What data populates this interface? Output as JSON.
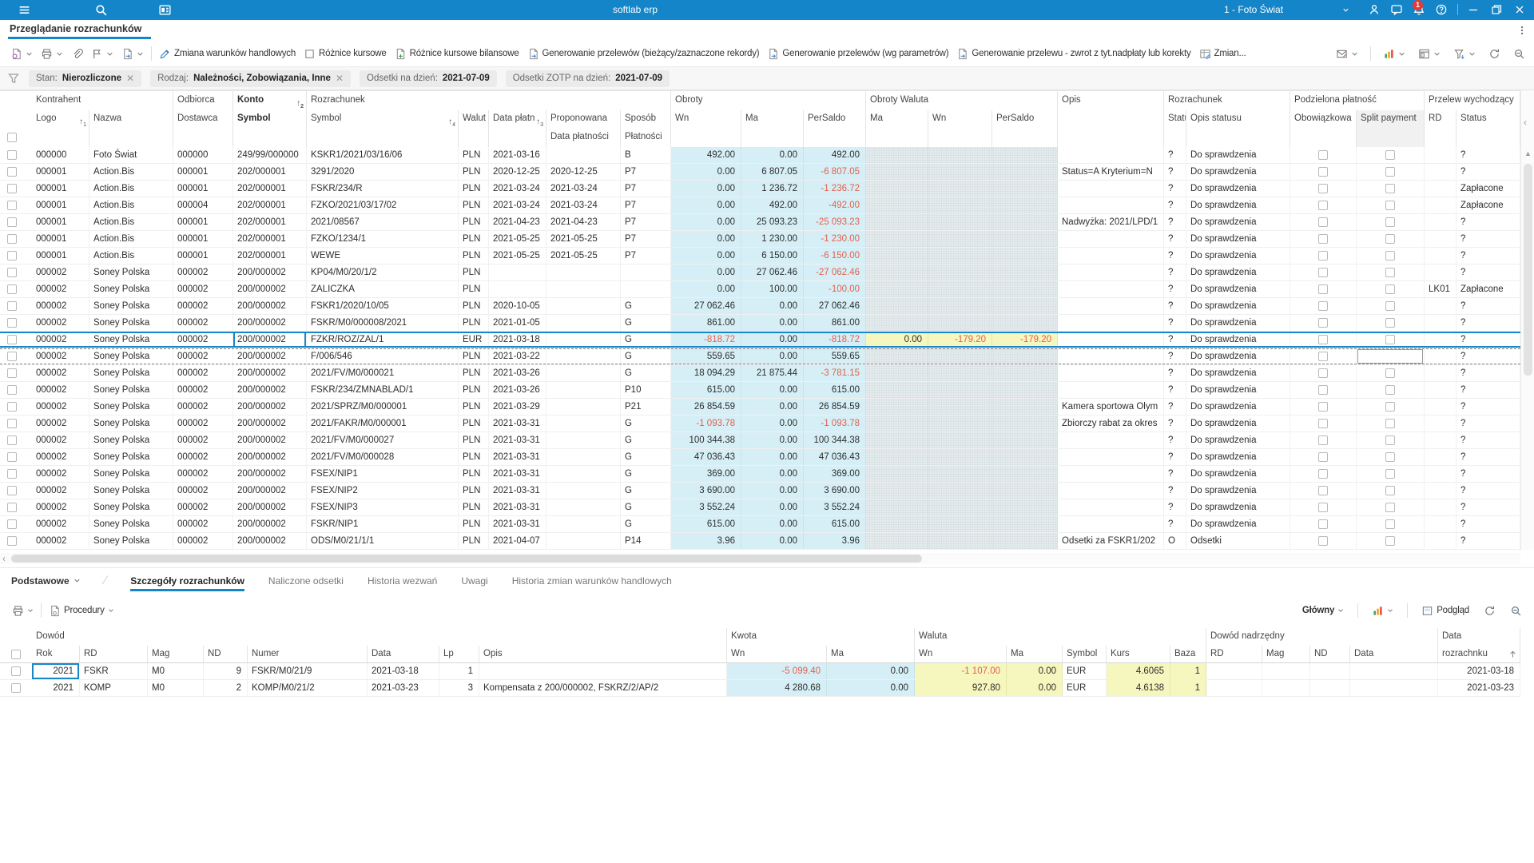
{
  "window": {
    "title": "softlab erp",
    "company": "1 - Foto Świat",
    "notifications": "1"
  },
  "nav": {
    "active_tab": "Przeglądanie rozrachunków"
  },
  "toolbar": {
    "buttons": [
      "Zmiana warunków handlowych",
      "Różnice kursowe",
      "Różnice kursowe bilansowe",
      "Generowanie przelewów (bieżący/zaznaczone rekordy)",
      "Generowanie przelewów (wg parametrów)",
      "Generowanie przelewu - zwrot z tyt.nadpłaty lub korekty",
      "Zmian..."
    ]
  },
  "filter_bar": {
    "chips": [
      {
        "label": "Stan:",
        "value": "Nierozliczone",
        "removable": true
      },
      {
        "label": "Rodzaj:",
        "value": "Należności, Zobowiązania, Inne",
        "removable": true
      },
      {
        "label": "Odsetki  na dzień:",
        "value": "2021-07-09",
        "removable": false
      },
      {
        "label": "Odsetki ZOTP  na dzień:",
        "value": "2021-07-09",
        "removable": false
      }
    ]
  },
  "main_grid": {
    "group_labels": [
      "Kontrahent",
      "Odbiorca",
      "Konto",
      "Rozrachunek",
      "Obroty",
      "Obroty Waluta",
      "Opis",
      "Rozrachunek",
      "Podzielona płatność",
      "Przelew wychodzący"
    ],
    "columns": [
      "Logo",
      "Nazwa",
      "Dostawca",
      "Symbol",
      "Symbol",
      "Walut",
      "Data płatn",
      "Proponowana",
      "Sposób",
      "Wn",
      "Ma",
      "PerSaldo",
      "Ma",
      "Wn",
      "PerSaldo",
      "",
      "Statu",
      "Opis statusu",
      "Obowiązkowa",
      "Split payment",
      "RD",
      "Status"
    ],
    "columns_line2": {
      "proponowana": "Data płatności",
      "sposob": "Płatności"
    },
    "sort_indicators": {
      "logo": "1",
      "konto": "2",
      "data_platnosci": "3",
      "symbol": "4"
    },
    "selected_row_index": 11,
    "dashed_row_index": 12,
    "rows": [
      [
        "000000",
        "Foto Świat",
        "000000",
        "249/99/000000",
        "KSKR1/2021/03/16/06",
        "PLN",
        "2021-03-16",
        "",
        "B",
        "492.00",
        "0.00",
        "492.00",
        "",
        "",
        "",
        "",
        "?",
        "Do sprawdzenia",
        "",
        "?"
      ],
      [
        "000001",
        "Action.Bis",
        "000001",
        "202/000001",
        "3291/2020",
        "PLN",
        "2020-12-25",
        "2020-12-25",
        "P7",
        "0.00",
        "6 807.05",
        "-6 807.05",
        "",
        "",
        "",
        "Status=A Kryterium=N",
        "?",
        "Do sprawdzenia",
        "",
        "?"
      ],
      [
        "000001",
        "Action.Bis",
        "000001",
        "202/000001",
        "FSKR/234/R",
        "PLN",
        "2021-03-24",
        "2021-03-24",
        "P7",
        "0.00",
        "1 236.72",
        "-1 236.72",
        "",
        "",
        "",
        "",
        "?",
        "Do sprawdzenia",
        "",
        "Zapłacone"
      ],
      [
        "000001",
        "Action.Bis",
        "000004",
        "202/000001",
        "FZKO/2021/03/17/02",
        "PLN",
        "2021-03-24",
        "2021-03-24",
        "P7",
        "0.00",
        "492.00",
        "-492.00",
        "",
        "",
        "",
        "",
        "?",
        "Do sprawdzenia",
        "",
        "Zapłacone"
      ],
      [
        "000001",
        "Action.Bis",
        "000001",
        "202/000001",
        "2021/08567",
        "PLN",
        "2021-04-23",
        "2021-04-23",
        "P7",
        "0.00",
        "25 093.23",
        "-25 093.23",
        "",
        "",
        "",
        "Nadwyżka: 2021/LPD/1",
        "?",
        "Do sprawdzenia",
        "",
        "?"
      ],
      [
        "000001",
        "Action.Bis",
        "000001",
        "202/000001",
        "FZKO/1234/1",
        "PLN",
        "2021-05-25",
        "2021-05-25",
        "P7",
        "0.00",
        "1 230.00",
        "-1 230.00",
        "",
        "",
        "",
        "",
        "?",
        "Do sprawdzenia",
        "",
        "?"
      ],
      [
        "000001",
        "Action.Bis",
        "000001",
        "202/000001",
        "WEWE",
        "PLN",
        "2021-05-25",
        "2021-05-25",
        "P7",
        "0.00",
        "6 150.00",
        "-6 150.00",
        "",
        "",
        "",
        "",
        "?",
        "Do sprawdzenia",
        "",
        "?"
      ],
      [
        "000002",
        "Soney Polska",
        "000002",
        "200/000002",
        "KP04/M0/20/1/2",
        "PLN",
        "",
        "",
        "",
        "0.00",
        "27 062.46",
        "-27 062.46",
        "",
        "",
        "",
        "",
        "?",
        "Do sprawdzenia",
        "",
        "?"
      ],
      [
        "000002",
        "Soney Polska",
        "000002",
        "200/000002",
        "ZALICZKA",
        "PLN",
        "",
        "",
        "",
        "0.00",
        "100.00",
        "-100.00",
        "",
        "",
        "",
        "",
        "?",
        "Do sprawdzenia",
        "LK01",
        "Zapłacone"
      ],
      [
        "000002",
        "Soney Polska",
        "000002",
        "200/000002",
        "FSKR1/2020/10/05",
        "PLN",
        "2020-10-05",
        "",
        "G",
        "27 062.46",
        "0.00",
        "27 062.46",
        "",
        "",
        "",
        "",
        "?",
        "Do sprawdzenia",
        "",
        "?"
      ],
      [
        "000002",
        "Soney Polska",
        "000002",
        "200/000002",
        "FSKR/M0/000008/2021",
        "PLN",
        "2021-01-05",
        "",
        "G",
        "861.00",
        "0.00",
        "861.00",
        "",
        "",
        "",
        "",
        "?",
        "Do sprawdzenia",
        "",
        "?"
      ],
      [
        "000002",
        "Soney Polska",
        "000002",
        "200/000002",
        "FZKR/ROZ/ZAL/1",
        "EUR",
        "2021-03-18",
        "",
        "G",
        "-818.72",
        "0.00",
        "-818.72",
        "0.00",
        "-179.20",
        "-179.20",
        "",
        "?",
        "Do sprawdzenia",
        "",
        "?"
      ],
      [
        "000002",
        "Soney Polska",
        "000002",
        "200/000002",
        "F/006/546",
        "PLN",
        "2021-03-22",
        "",
        "G",
        "559.65",
        "0.00",
        "559.65",
        "",
        "",
        "",
        "",
        "?",
        "Do sprawdzenia",
        "",
        "?"
      ],
      [
        "000002",
        "Soney Polska",
        "000002",
        "200/000002",
        "2021/FV/M0/000021",
        "PLN",
        "2021-03-26",
        "",
        "G",
        "18 094.29",
        "21 875.44",
        "-3 781.15",
        "",
        "",
        "",
        "",
        "?",
        "Do sprawdzenia",
        "",
        "?"
      ],
      [
        "000002",
        "Soney Polska",
        "000002",
        "200/000002",
        "FSKR/234/ZMNABLAD/1",
        "PLN",
        "2021-03-26",
        "",
        "P10",
        "615.00",
        "0.00",
        "615.00",
        "",
        "",
        "",
        "",
        "?",
        "Do sprawdzenia",
        "",
        "?"
      ],
      [
        "000002",
        "Soney Polska",
        "000002",
        "200/000002",
        "2021/SPRZ/M0/000001",
        "PLN",
        "2021-03-29",
        "",
        "P21",
        "26 854.59",
        "0.00",
        "26 854.59",
        "",
        "",
        "",
        "Kamera sportowa Olym",
        "?",
        "Do sprawdzenia",
        "",
        "?"
      ],
      [
        "000002",
        "Soney Polska",
        "000002",
        "200/000002",
        "2021/FAKR/M0/000001",
        "PLN",
        "2021-03-31",
        "",
        "G",
        "-1 093.78",
        "0.00",
        "-1 093.78",
        "",
        "",
        "",
        "Zbiorczy rabat za okres",
        "?",
        "Do sprawdzenia",
        "",
        "?"
      ],
      [
        "000002",
        "Soney Polska",
        "000002",
        "200/000002",
        "2021/FV/M0/000027",
        "PLN",
        "2021-03-31",
        "",
        "G",
        "100 344.38",
        "0.00",
        "100 344.38",
        "",
        "",
        "",
        "",
        "?",
        "Do sprawdzenia",
        "",
        "?"
      ],
      [
        "000002",
        "Soney Polska",
        "000002",
        "200/000002",
        "2021/FV/M0/000028",
        "PLN",
        "2021-03-31",
        "",
        "G",
        "47 036.43",
        "0.00",
        "47 036.43",
        "",
        "",
        "",
        "",
        "?",
        "Do sprawdzenia",
        "",
        "?"
      ],
      [
        "000002",
        "Soney Polska",
        "000002",
        "200/000002",
        "FSEX/NIP1",
        "PLN",
        "2021-03-31",
        "",
        "G",
        "369.00",
        "0.00",
        "369.00",
        "",
        "",
        "",
        "",
        "?",
        "Do sprawdzenia",
        "",
        "?"
      ],
      [
        "000002",
        "Soney Polska",
        "000002",
        "200/000002",
        "FSEX/NIP2",
        "PLN",
        "2021-03-31",
        "",
        "G",
        "3 690.00",
        "0.00",
        "3 690.00",
        "",
        "",
        "",
        "",
        "?",
        "Do sprawdzenia",
        "",
        "?"
      ],
      [
        "000002",
        "Soney Polska",
        "000002",
        "200/000002",
        "FSEX/NIP3",
        "PLN",
        "2021-03-31",
        "",
        "G",
        "3 552.24",
        "0.00",
        "3 552.24",
        "",
        "",
        "",
        "",
        "?",
        "Do sprawdzenia",
        "",
        "?"
      ],
      [
        "000002",
        "Soney Polska",
        "000002",
        "200/000002",
        "FSKR/NIP1",
        "PLN",
        "2021-03-31",
        "",
        "G",
        "615.00",
        "0.00",
        "615.00",
        "",
        "",
        "",
        "",
        "?",
        "Do sprawdzenia",
        "",
        "?"
      ],
      [
        "000002",
        "Soney Polska",
        "000002",
        "200/000002",
        "ODS/M0/21/1/1",
        "PLN",
        "2021-04-07",
        "",
        "P14",
        "3.96",
        "0.00",
        "3.96",
        "",
        "",
        "",
        "Odsetki za FSKR1/202",
        "O",
        "Odsetki",
        "",
        "?"
      ]
    ]
  },
  "bottom_panel": {
    "tabs": [
      "Podstawowe",
      "Szczegóły rozrachunków",
      "Naliczone odsetki",
      "Historia wezwań",
      "Uwagi",
      "Historia zmian warunków handlowych"
    ],
    "active_tab_index": 1,
    "toolbar": {
      "procedures_label": "Procedury",
      "view_selector": "Główny",
      "preview_label": "Podgląd"
    },
    "grid": {
      "group_labels": [
        "Dowód",
        "Kwota",
        "Waluta",
        "Dowód nadrzędny",
        "Data"
      ],
      "columns": [
        "Rok",
        "RD",
        "Mag",
        "ND",
        "Numer",
        "Data",
        "Lp",
        "Opis",
        "Wn",
        "Ma",
        "Wn",
        "Ma",
        "Symbol",
        "Kurs",
        "Baza",
        "RD",
        "Mag",
        "ND",
        "Data",
        "rozrachnku"
      ],
      "rows": [
        [
          "2021",
          "FSKR",
          "M0",
          "9",
          "FSKR/M0/21/9",
          "2021-03-18",
          "1",
          "",
          "-5 099.40",
          "0.00",
          "-1 107.00",
          "0.00",
          "EUR",
          "4.6065",
          "1",
          "",
          "",
          "",
          "",
          "2021-03-18"
        ],
        [
          "2021",
          "KOMP",
          "M0",
          "2",
          "KOMP/M0/21/2",
          "2021-03-23",
          "3",
          "Kompensata z 200/000002, FSKRZ/2/AP/2",
          "4 280.68",
          "0.00",
          "927.80",
          "0.00",
          "EUR",
          "4.6138",
          "1",
          "",
          "",
          "",
          "",
          "2021-03-23"
        ]
      ]
    }
  },
  "colors": {
    "accent": "#1485c8",
    "selection": "#1886c9",
    "cyan_cell": "#d6eff6",
    "yellow_cell": "#f6f6bf",
    "gray_cell": "#e5ecee",
    "negative": "#e2614e",
    "badge": "#e53935"
  }
}
